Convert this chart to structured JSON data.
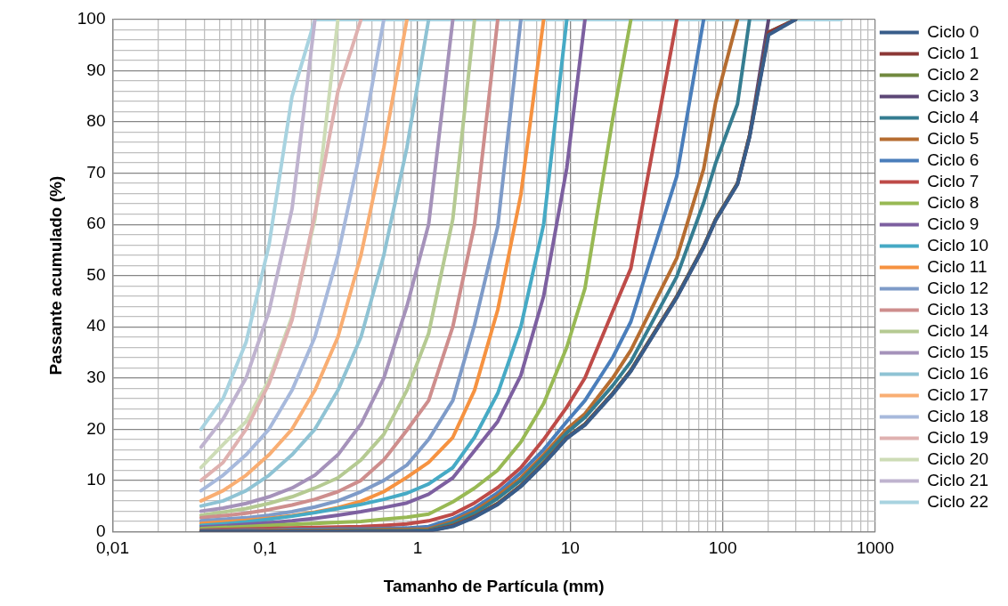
{
  "chart_data": {
    "type": "line",
    "xlabel": "Tamanho de Partícula (mm)",
    "ylabel": "Passante acumulado (%)",
    "log": "x",
    "grid": true,
    "legend": "right",
    "marker": "none",
    "line_style": "solid",
    "xlim": [
      0.01,
      1000
    ],
    "ylim": [
      0,
      100
    ],
    "xticks": [
      {
        "value": 0.01,
        "label": "0,01"
      },
      {
        "value": 0.02,
        "label": null
      },
      {
        "value": 0.03,
        "label": null
      },
      {
        "value": 0.04,
        "label": null
      },
      {
        "value": 0.05,
        "label": null
      },
      {
        "value": 0.06,
        "label": null
      },
      {
        "value": 0.07,
        "label": null
      },
      {
        "value": 0.08,
        "label": null
      },
      {
        "value": 0.09,
        "label": null
      },
      {
        "value": 0.1,
        "label": "0,1"
      },
      {
        "value": 0.2,
        "label": null
      },
      {
        "value": 0.3,
        "label": null
      },
      {
        "value": 0.4,
        "label": null
      },
      {
        "value": 0.5,
        "label": null
      },
      {
        "value": 0.6,
        "label": null
      },
      {
        "value": 0.7,
        "label": null
      },
      {
        "value": 0.8,
        "label": null
      },
      {
        "value": 0.9,
        "label": null
      },
      {
        "value": 1,
        "label": "1"
      },
      {
        "value": 2,
        "label": null
      },
      {
        "value": 3,
        "label": null
      },
      {
        "value": 4,
        "label": null
      },
      {
        "value": 5,
        "label": null
      },
      {
        "value": 6,
        "label": null
      },
      {
        "value": 7,
        "label": null
      },
      {
        "value": 8,
        "label": null
      },
      {
        "value": 9,
        "label": null
      },
      {
        "value": 10,
        "label": "10"
      },
      {
        "value": 20,
        "label": null
      },
      {
        "value": 30,
        "label": null
      },
      {
        "value": 40,
        "label": null
      },
      {
        "value": 50,
        "label": null
      },
      {
        "value": 60,
        "label": null
      },
      {
        "value": 70,
        "label": null
      },
      {
        "value": 80,
        "label": null
      },
      {
        "value": 90,
        "label": null
      },
      {
        "value": 100,
        "label": "100"
      },
      {
        "value": 200,
        "label": null
      },
      {
        "value": 300,
        "label": null
      },
      {
        "value": 400,
        "label": null
      },
      {
        "value": 500,
        "label": null
      },
      {
        "value": 600,
        "label": null
      },
      {
        "value": 700,
        "label": null
      },
      {
        "value": 800,
        "label": null
      },
      {
        "value": 900,
        "label": null
      },
      {
        "value": 1000,
        "label": "1000"
      }
    ],
    "yticks": [
      0,
      {
        "value": 2,
        "label": null
      },
      {
        "value": 4,
        "label": null
      },
      {
        "value": 6,
        "label": null
      },
      {
        "value": 8,
        "label": null
      },
      10,
      {
        "value": 12,
        "label": null
      },
      {
        "value": 14,
        "label": null
      },
      {
        "value": 16,
        "label": null
      },
      {
        "value": 18,
        "label": null
      },
      20,
      {
        "value": 22,
        "label": null
      },
      {
        "value": 24,
        "label": null
      },
      {
        "value": 26,
        "label": null
      },
      {
        "value": 28,
        "label": null
      },
      30,
      {
        "value": 32,
        "label": null
      },
      {
        "value": 34,
        "label": null
      },
      {
        "value": 36,
        "label": null
      },
      {
        "value": 38,
        "label": null
      },
      40,
      {
        "value": 42,
        "label": null
      },
      {
        "value": 44,
        "label": null
      },
      {
        "value": 46,
        "label": null
      },
      {
        "value": 48,
        "label": null
      },
      50,
      {
        "value": 52,
        "label": null
      },
      {
        "value": 54,
        "label": null
      },
      {
        "value": 56,
        "label": null
      },
      {
        "value": 58,
        "label": null
      },
      60,
      {
        "value": 62,
        "label": null
      },
      {
        "value": 64,
        "label": null
      },
      {
        "value": 66,
        "label": null
      },
      {
        "value": 68,
        "label": null
      },
      70,
      {
        "value": 72,
        "label": null
      },
      {
        "value": 74,
        "label": null
      },
      {
        "value": 76,
        "label": null
      },
      {
        "value": 78,
        "label": null
      },
      80,
      {
        "value": 82,
        "label": null
      },
      {
        "value": 84,
        "label": null
      },
      {
        "value": 86,
        "label": null
      },
      {
        "value": 88,
        "label": null
      },
      90,
      {
        "value": 92,
        "label": null
      },
      {
        "value": 94,
        "label": null
      },
      {
        "value": 96,
        "label": null
      },
      {
        "value": 98,
        "label": null
      },
      100
    ],
    "x": [
      0.038,
      0.053,
      0.075,
      0.106,
      0.15,
      0.212,
      0.3,
      0.425,
      0.6,
      0.85,
      1.18,
      1.7,
      2.36,
      3.35,
      4.75,
      6.7,
      9.5,
      12.5,
      19,
      25,
      50,
      75,
      90,
      125,
      150,
      200,
      300,
      600
    ],
    "series": [
      {
        "name": "Ciclo 0",
        "color": "#385d8a",
        "values": [
          0,
          0,
          0,
          0,
          0,
          0,
          0,
          0,
          0,
          0,
          0.1,
          1,
          2.8,
          5.3,
          8.8,
          13.2,
          18.2,
          20.8,
          26.8,
          31.3,
          45.7,
          55.5,
          60.8,
          67.8,
          77,
          97,
          100,
          null
        ]
      },
      {
        "name": "Ciclo 1",
        "color": "#8c3836",
        "values": [
          0,
          0,
          0,
          0,
          0,
          0,
          0,
          0,
          0,
          0,
          0.1,
          1.1,
          2.9,
          5.4,
          8.9,
          13.3,
          18.3,
          20.9,
          26.9,
          31.4,
          45.8,
          55.6,
          60.9,
          67.9,
          77.2,
          97.5,
          100,
          null
        ]
      },
      {
        "name": "Ciclo 2",
        "color": "#71893f",
        "values": [
          0,
          0,
          0,
          0,
          0,
          0,
          0,
          0,
          0,
          0,
          0.2,
          1.2,
          3,
          5.5,
          9,
          13.5,
          18.4,
          21,
          27,
          31.5,
          45.9,
          55.7,
          61,
          68,
          77.3,
          97.5,
          100,
          null
        ]
      },
      {
        "name": "Ciclo 3",
        "color": "#5c4776",
        "values": [
          0,
          0,
          0,
          0,
          0,
          0,
          0,
          0,
          0,
          0,
          0.2,
          1.2,
          3,
          5.5,
          9,
          13.5,
          18.4,
          21,
          27,
          31.5,
          45.9,
          55.7,
          61,
          68,
          77.3,
          100,
          null,
          null
        ]
      },
      {
        "name": "Ciclo 4",
        "color": "#357d91",
        "values": [
          0,
          0,
          0,
          0,
          0.1,
          0.1,
          0.1,
          0.2,
          0.2,
          0.2,
          0.3,
          1.7,
          3.6,
          6.5,
          10,
          14.5,
          19.3,
          22.3,
          28.5,
          33.2,
          49.8,
          64.2,
          72,
          83.5,
          100,
          null,
          null,
          null
        ]
      },
      {
        "name": "Ciclo 5",
        "color": "#b66d31",
        "values": [
          0.1,
          0.1,
          0.1,
          0.2,
          0.2,
          0.2,
          0.3,
          0.3,
          0.4,
          0.4,
          0.5,
          2,
          4,
          7,
          10.5,
          15,
          20,
          23,
          30,
          35.4,
          53.4,
          70.8,
          83.9,
          100,
          null,
          null,
          null,
          null
        ]
      },
      {
        "name": "Ciclo 6",
        "color": "#4a7ebb",
        "values": [
          0.2,
          0.2,
          0.3,
          0.3,
          0.4,
          0.4,
          0.5,
          0.5,
          0.6,
          0.7,
          1,
          2.5,
          4.6,
          7.6,
          11.5,
          16,
          21.5,
          25.6,
          34,
          41,
          69.4,
          100,
          null,
          null,
          null,
          null,
          null,
          null
        ]
      },
      {
        "name": "Ciclo 7",
        "color": "#be4b48",
        "values": [
          0.3,
          0.4,
          0.5,
          0.6,
          0.7,
          0.8,
          0.9,
          1,
          1.2,
          1.5,
          2.1,
          3.4,
          5.6,
          8.6,
          12.5,
          18,
          24.3,
          30,
          43,
          51.4,
          100,
          null,
          null,
          null,
          null,
          null,
          null,
          null
        ]
      },
      {
        "name": "Ciclo 8",
        "color": "#98b954",
        "values": [
          0.6,
          0.8,
          1,
          1.2,
          1.4,
          1.6,
          1.8,
          2,
          2.4,
          2.8,
          3.4,
          5.8,
          8.5,
          12,
          17.5,
          25,
          36,
          47.5,
          80.6,
          100,
          null,
          null,
          null,
          null,
          null,
          null,
          null,
          null
        ]
      },
      {
        "name": "Ciclo 9",
        "color": "#7d60a0",
        "values": [
          0.9,
          1.1,
          1.4,
          1.7,
          2.1,
          2.6,
          3.2,
          3.9,
          4.7,
          5.6,
          7.3,
          10.5,
          15.8,
          21.5,
          30.5,
          46,
          71,
          100,
          null,
          null,
          null,
          null,
          null,
          null,
          null,
          null,
          null,
          null
        ]
      },
      {
        "name": "Ciclo 10",
        "color": "#46aac5",
        "values": [
          1.2,
          1.5,
          1.9,
          2.4,
          3,
          3.7,
          4.5,
          5.3,
          6.3,
          7.5,
          9.3,
          12.5,
          18.4,
          27,
          40,
          60,
          100,
          null,
          null,
          null,
          null,
          null,
          null,
          null,
          null,
          null,
          null,
          null
        ]
      },
      {
        "name": "Ciclo 11",
        "color": "#f69240",
        "values": [
          1.6,
          1.9,
          2.2,
          2.6,
          3.1,
          3.8,
          4.7,
          5.9,
          7.8,
          10.6,
          13.5,
          18.4,
          27.6,
          43.3,
          65.8,
          100,
          null,
          null,
          null,
          null,
          null,
          null,
          null,
          null,
          null,
          null,
          null,
          null
        ]
      },
      {
        "name": "Ciclo 12",
        "color": "#7e9bc8",
        "values": [
          2.1,
          2.4,
          2.7,
          3.2,
          3.9,
          4.8,
          6,
          7.8,
          10,
          13,
          18,
          25.6,
          40.4,
          59.6,
          100,
          null,
          null,
          null,
          null,
          null,
          null,
          null,
          null,
          null,
          null,
          null,
          null,
          null
        ]
      },
      {
        "name": "Ciclo 13",
        "color": "#ce8e8d",
        "values": [
          2.7,
          3.1,
          3.6,
          4.3,
          5.2,
          6.3,
          7.8,
          10,
          14,
          19.8,
          25.6,
          40,
          60,
          100,
          null,
          null,
          null,
          null,
          null,
          null,
          null,
          null,
          null,
          null,
          null,
          null,
          null,
          null
        ]
      },
      {
        "name": "Ciclo 14",
        "color": "#b5ca92",
        "values": [
          3.2,
          3.8,
          4.5,
          5.5,
          6.8,
          8.5,
          10.5,
          14,
          19,
          27.6,
          38.7,
          61,
          100,
          null,
          null,
          null,
          null,
          null,
          null,
          null,
          null,
          null,
          null,
          null,
          null,
          null,
          null,
          null
        ]
      },
      {
        "name": "Ciclo 15",
        "color": "#a592ba",
        "values": [
          4,
          4.6,
          5.5,
          6.8,
          8.5,
          11,
          15,
          21,
          30,
          44,
          60,
          100,
          null,
          null,
          null,
          null,
          null,
          null,
          null,
          null,
          null,
          null,
          null,
          null,
          null,
          null,
          null,
          null
        ]
      },
      {
        "name": "Ciclo 16",
        "color": "#8fc3d4",
        "values": [
          5,
          6,
          8,
          11,
          15,
          20,
          27.6,
          38,
          54,
          75,
          100,
          null,
          null,
          null,
          null,
          null,
          null,
          null,
          null,
          null,
          null,
          null,
          null,
          null,
          null,
          null,
          null,
          null
        ]
      },
      {
        "name": "Ciclo 17",
        "color": "#f9ae73",
        "values": [
          6,
          8,
          11,
          15,
          20,
          27.6,
          38,
          54,
          75,
          100,
          null,
          null,
          null,
          null,
          null,
          null,
          null,
          null,
          null,
          null,
          null,
          null,
          null,
          null,
          null,
          null,
          null,
          null
        ]
      },
      {
        "name": "Ciclo 18",
        "color": "#a7b9dc",
        "values": [
          8,
          11,
          15,
          20,
          27.6,
          38,
          54,
          75,
          100,
          null,
          null,
          null,
          null,
          null,
          null,
          null,
          null,
          null,
          null,
          null,
          null,
          null,
          null,
          null,
          null,
          null,
          null,
          null
        ]
      },
      {
        "name": "Ciclo 19",
        "color": "#dfb1b0",
        "values": [
          10,
          13.5,
          20,
          28.9,
          41.3,
          62,
          86,
          100,
          null,
          null,
          null,
          null,
          null,
          null,
          null,
          null,
          null,
          null,
          null,
          null,
          null,
          null,
          null,
          null,
          null,
          null,
          null,
          null
        ]
      },
      {
        "name": "Ciclo 20",
        "color": "#cddcb6",
        "values": [
          12.5,
          17,
          21.5,
          29.6,
          42,
          61,
          100,
          null,
          null,
          null,
          null,
          null,
          null,
          null,
          null,
          null,
          null,
          null,
          null,
          null,
          null,
          null,
          null,
          null,
          null,
          null,
          null,
          null
        ]
      },
      {
        "name": "Ciclo 21",
        "color": "#bfb3cf",
        "values": [
          16.5,
          22,
          30,
          43,
          63,
          100,
          null,
          null,
          null,
          null,
          null,
          null,
          null,
          null,
          null,
          null,
          null,
          null,
          null,
          null,
          null,
          null,
          null,
          null,
          null,
          null,
          null,
          null
        ]
      },
      {
        "name": "Ciclo 22",
        "color": "#a8d3e0",
        "values": [
          20,
          26,
          37,
          56,
          85,
          100,
          100,
          100,
          100,
          100,
          100,
          100,
          100,
          100,
          100,
          100,
          100,
          100,
          100,
          100,
          100,
          100,
          100,
          100,
          100,
          100,
          100,
          100
        ]
      }
    ]
  }
}
